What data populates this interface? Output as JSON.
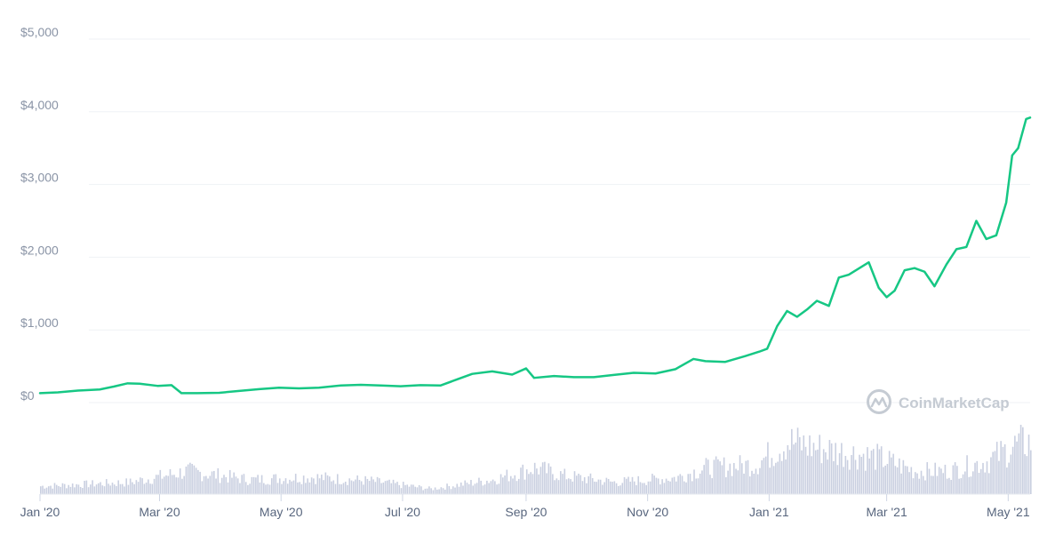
{
  "chart_data": {
    "type": "line",
    "title": "",
    "xlabel": "",
    "ylabel": "",
    "ylim": [
      0,
      5000
    ],
    "y_ticks": [
      {
        "value": 0,
        "label": "$0"
      },
      {
        "value": 1000,
        "label": "$1,000"
      },
      {
        "value": 2000,
        "label": "$2,000"
      },
      {
        "value": 3000,
        "label": "$3,000"
      },
      {
        "value": 4000,
        "label": "$4,000"
      },
      {
        "value": 5000,
        "label": "$5,000"
      }
    ],
    "x_range": [
      "2020-01-01",
      "2021-05-12"
    ],
    "x_ticks": [
      {
        "date": "2020-01-01",
        "label": "Jan '20"
      },
      {
        "date": "2020-03-01",
        "label": "Mar '20"
      },
      {
        "date": "2020-05-01",
        "label": "May '20"
      },
      {
        "date": "2020-07-01",
        "label": "Jul '20"
      },
      {
        "date": "2020-09-01",
        "label": "Sep '20"
      },
      {
        "date": "2020-11-01",
        "label": "Nov '20"
      },
      {
        "date": "2021-01-01",
        "label": "Jan '21"
      },
      {
        "date": "2021-03-01",
        "label": "Mar '21"
      },
      {
        "date": "2021-05-01",
        "label": "May '21"
      }
    ],
    "grid": true,
    "legend": "none",
    "line_color": "#16c784",
    "volume_color": "#c9cfe0",
    "series": [
      {
        "values": [
          [
            "2020-01-01",
            130
          ],
          [
            "2020-01-10",
            140
          ],
          [
            "2020-01-20",
            165
          ],
          [
            "2020-01-31",
            180
          ],
          [
            "2020-02-07",
            220
          ],
          [
            "2020-02-14",
            265
          ],
          [
            "2020-02-20",
            260
          ],
          [
            "2020-02-29",
            230
          ],
          [
            "2020-03-07",
            240
          ],
          [
            "2020-03-12",
            130
          ],
          [
            "2020-03-20",
            130
          ],
          [
            "2020-03-31",
            135
          ],
          [
            "2020-04-10",
            160
          ],
          [
            "2020-04-20",
            185
          ],
          [
            "2020-04-30",
            205
          ],
          [
            "2020-05-10",
            195
          ],
          [
            "2020-05-20",
            205
          ],
          [
            "2020-05-31",
            235
          ],
          [
            "2020-06-10",
            245
          ],
          [
            "2020-06-20",
            235
          ],
          [
            "2020-06-30",
            225
          ],
          [
            "2020-07-10",
            240
          ],
          [
            "2020-07-20",
            235
          ],
          [
            "2020-07-28",
            315
          ],
          [
            "2020-08-05",
            395
          ],
          [
            "2020-08-15",
            430
          ],
          [
            "2020-08-25",
            385
          ],
          [
            "2020-09-01",
            470
          ],
          [
            "2020-09-05",
            340
          ],
          [
            "2020-09-15",
            365
          ],
          [
            "2020-09-25",
            350
          ],
          [
            "2020-10-05",
            350
          ],
          [
            "2020-10-15",
            380
          ],
          [
            "2020-10-25",
            410
          ],
          [
            "2020-11-05",
            400
          ],
          [
            "2020-11-15",
            460
          ],
          [
            "2020-11-24",
            600
          ],
          [
            "2020-11-30",
            570
          ],
          [
            "2020-12-10",
            560
          ],
          [
            "2020-12-20",
            640
          ],
          [
            "2020-12-27",
            700
          ],
          [
            "2020-12-31",
            740
          ],
          [
            "2021-01-05",
            1050
          ],
          [
            "2021-01-10",
            1260
          ],
          [
            "2021-01-15",
            1180
          ],
          [
            "2021-01-20",
            1280
          ],
          [
            "2021-01-25",
            1400
          ],
          [
            "2021-01-31",
            1330
          ],
          [
            "2021-02-05",
            1720
          ],
          [
            "2021-02-10",
            1760
          ],
          [
            "2021-02-20",
            1930
          ],
          [
            "2021-02-25",
            1580
          ],
          [
            "2021-03-01",
            1450
          ],
          [
            "2021-03-05",
            1540
          ],
          [
            "2021-03-10",
            1820
          ],
          [
            "2021-03-15",
            1850
          ],
          [
            "2021-03-20",
            1800
          ],
          [
            "2021-03-25",
            1600
          ],
          [
            "2021-03-31",
            1900
          ],
          [
            "2021-04-05",
            2110
          ],
          [
            "2021-04-10",
            2140
          ],
          [
            "2021-04-15",
            2500
          ],
          [
            "2021-04-20",
            2250
          ],
          [
            "2021-04-25",
            2300
          ],
          [
            "2021-04-30",
            2750
          ],
          [
            "2021-05-03",
            3400
          ],
          [
            "2021-05-06",
            3500
          ],
          [
            "2021-05-10",
            3900
          ],
          [
            "2021-05-12",
            3920
          ]
        ]
      }
    ],
    "volume": {
      "visible": true,
      "relative_levels": [
        [
          "2020-01-01",
          0.12
        ],
        [
          "2020-02-15",
          0.18
        ],
        [
          "2020-03-15",
          0.35
        ],
        [
          "2020-04-15",
          0.22
        ],
        [
          "2020-05-15",
          0.26
        ],
        [
          "2020-06-15",
          0.2
        ],
        [
          "2020-07-15",
          0.08
        ],
        [
          "2020-08-15",
          0.22
        ],
        [
          "2020-09-05",
          0.4
        ],
        [
          "2020-09-20",
          0.28
        ],
        [
          "2020-10-15",
          0.18
        ],
        [
          "2020-11-15",
          0.25
        ],
        [
          "2020-11-30",
          0.4
        ],
        [
          "2020-12-25",
          0.45
        ],
        [
          "2021-01-10",
          0.8
        ],
        [
          "2021-01-25",
          0.7
        ],
        [
          "2021-02-15",
          0.6
        ],
        [
          "2021-02-25",
          0.55
        ],
        [
          "2021-03-15",
          0.35
        ],
        [
          "2021-04-01",
          0.35
        ],
        [
          "2021-04-20",
          0.5
        ],
        [
          "2021-05-05",
          0.75
        ],
        [
          "2021-05-12",
          0.8
        ]
      ]
    }
  },
  "watermark": {
    "text": "CoinMarketCap",
    "icon": "coinmarketcap-logo-icon"
  }
}
